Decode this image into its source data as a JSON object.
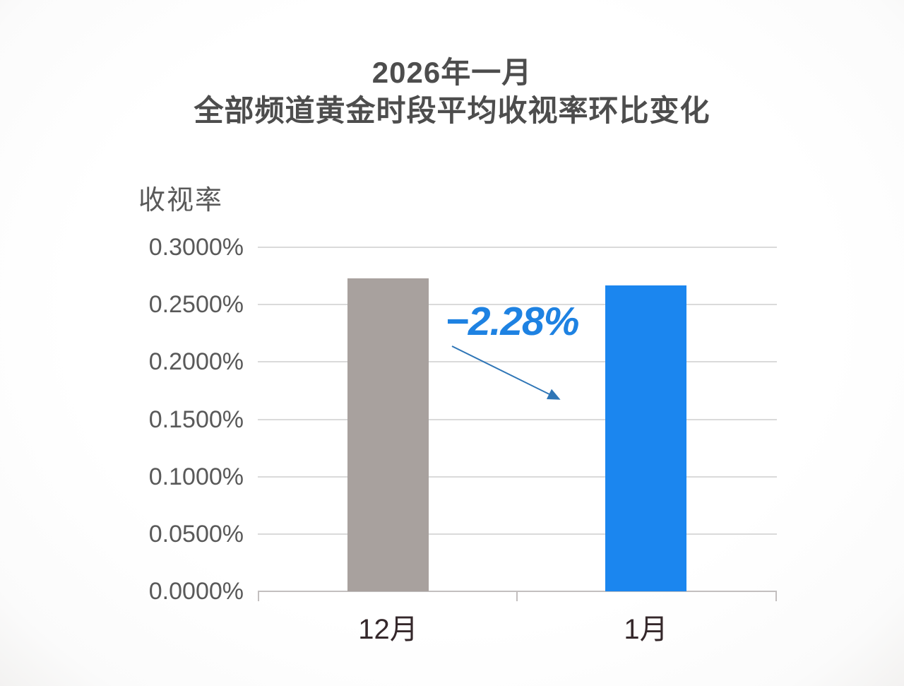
{
  "title": {
    "line1": "2026年一月",
    "line2": "全部频道黄金时段平均收视率环比变化"
  },
  "y_axis": {
    "label": "收视率",
    "ticks": [
      "0.3000%",
      "0.2500%",
      "0.2000%",
      "0.1500%",
      "0.1000%",
      "0.0500%",
      "0.0000%"
    ]
  },
  "x_axis": {
    "categories": [
      "12月",
      "1月"
    ]
  },
  "annotation": {
    "text": "−2.28%"
  },
  "colors": {
    "title_text": "#4d4d4d",
    "tick_text": "#595959",
    "x_label_text": "#35282b",
    "bar_december": "#a8a19e",
    "bar_january": "#1b86ef",
    "annotation_text": "#1e82e2",
    "arrow": "#2e75b6",
    "gridline": "#dadada",
    "axis_line": "#c3bfbf"
  },
  "chart_data": {
    "type": "bar",
    "title": "2026年一月 全部频道黄金时段平均收视率环比变化",
    "categories": [
      "12月",
      "1月"
    ],
    "values": [
      0.273,
      0.2668
    ],
    "unit": "%",
    "xlabel": "",
    "ylabel": "收视率",
    "ylim": [
      0,
      0.3
    ],
    "ytick_step": 0.05,
    "ytick_format": "0.0000%",
    "grid": true,
    "legend": false,
    "series_colors": [
      "#a8a19e",
      "#1b86ef"
    ],
    "change_percent": -2.28,
    "change_annotation": "−2.28%",
    "annotation_note": "arrow pointing from December bar level down toward January bar"
  }
}
